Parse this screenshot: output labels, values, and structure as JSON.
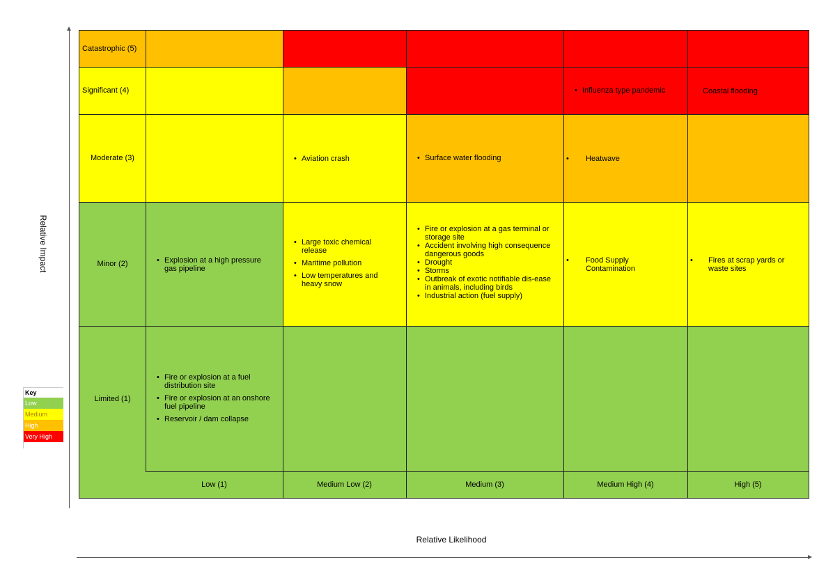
{
  "axes": {
    "y_label": "Relative Impact",
    "x_label": "Relative Likelihood"
  },
  "colors": {
    "low": "#92d050",
    "medium": "#ffff00",
    "high": "#ffc000",
    "very_high": "#ff0000"
  },
  "rows": [
    {
      "label": "Catastrophic (5)"
    },
    {
      "label": "Significant (4)"
    },
    {
      "label": "Moderate (3)"
    },
    {
      "label": "Minor (2)"
    },
    {
      "label": "Limited (1)"
    }
  ],
  "columns": [
    {
      "label": "Low (1)"
    },
    {
      "label": "Medium Low (2)"
    },
    {
      "label": "Medium (3)"
    },
    {
      "label": "Medium High (4)"
    },
    {
      "label": "High (5)"
    }
  ],
  "cells": {
    "significant_medium_high": [
      "Influenza type pandemic"
    ],
    "significant_high": [
      "Coastal flooding"
    ],
    "moderate_medium_low": [
      "Aviation crash"
    ],
    "moderate_medium": [
      "Surface water flooding"
    ],
    "moderate_medium_high": [
      "Heatwave"
    ],
    "minor_low": [
      "Explosion at a high pressure gas pipeline"
    ],
    "minor_medium_low": [
      "Large toxic chemical release",
      "Maritime pollution",
      "Low temperatures and heavy snow"
    ],
    "minor_medium": [
      "Fire or explosion at a gas terminal or storage site",
      "Accident involving high consequence dangerous goods",
      "Drought",
      "Storms",
      "Outbreak of exotic notifiable dis-ease in animals, including birds",
      "Industrial action (fuel supply)"
    ],
    "minor_medium_high": [
      "Food Supply Contamination"
    ],
    "minor_high": [
      "Fires at scrap yards or waste sites"
    ],
    "limited_low": [
      "Fire or explosion at a fuel distribution site",
      "Fire or explosion at an onshore fuel pipeline",
      "Reservoir / dam collapse"
    ]
  },
  "key": {
    "title": "Key",
    "items": [
      {
        "label": "Low",
        "color": "#92d050"
      },
      {
        "label": "Medium",
        "color": "#ffff00"
      },
      {
        "label": "High",
        "color": "#ffc000"
      },
      {
        "label": "Very High",
        "color": "#ff0000"
      }
    ]
  }
}
